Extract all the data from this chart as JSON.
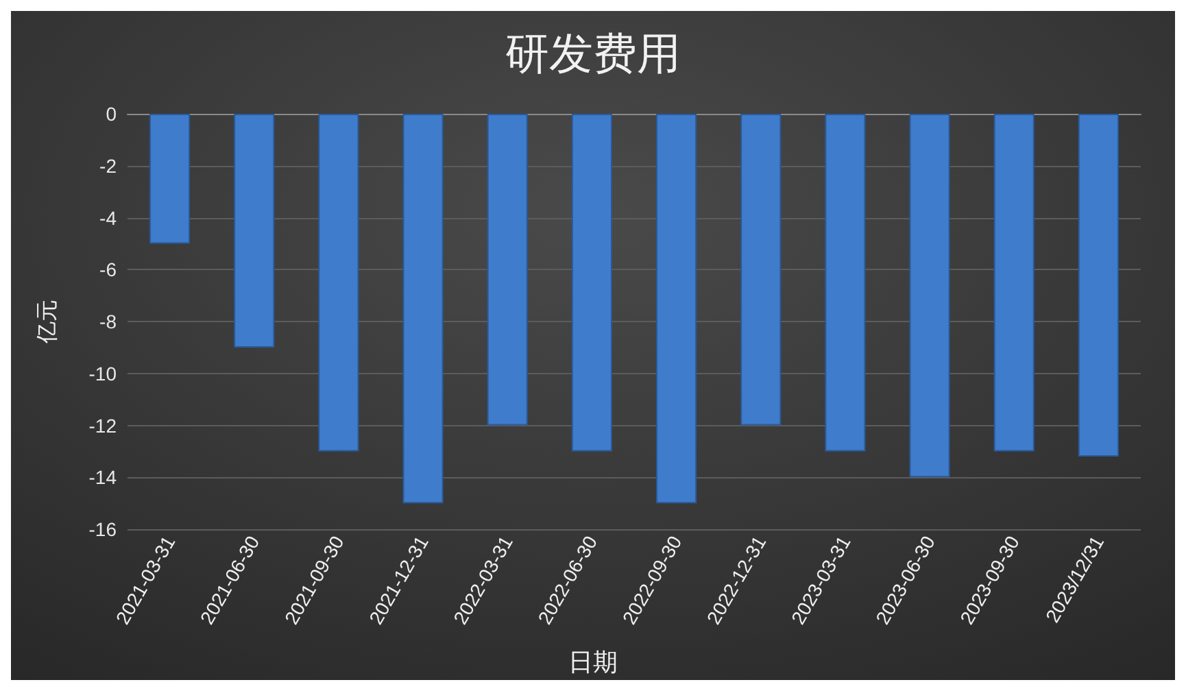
{
  "chart_data": {
    "type": "bar",
    "title": "研发费用",
    "xlabel": "日期",
    "ylabel": "亿元",
    "categories": [
      "2021-03-31",
      "2021-06-30",
      "2021-09-30",
      "2021-12-31",
      "2022-03-31",
      "2022-06-30",
      "2022-09-30",
      "2022-12-31",
      "2023-03-31",
      "2023-06-30",
      "2023-09-30",
      "2023/12/31"
    ],
    "values": [
      -5,
      -9,
      -13,
      -15,
      -12,
      -13,
      -15,
      -12,
      -13,
      -14,
      -13,
      -13.2
    ],
    "color": "#3f7ccc",
    "ylim": [
      -16,
      0
    ],
    "yticks": [
      0,
      -2,
      -4,
      -6,
      -8,
      -10,
      -12,
      -14,
      -16
    ],
    "grid": true
  }
}
